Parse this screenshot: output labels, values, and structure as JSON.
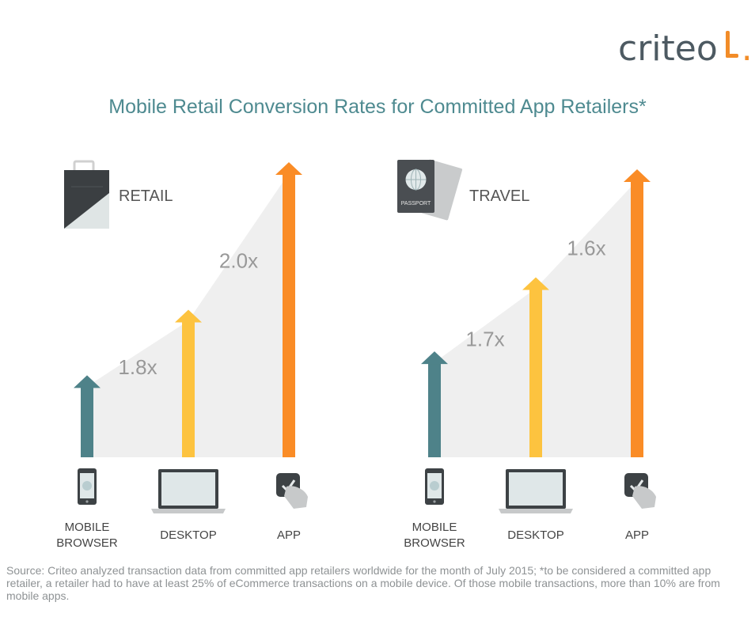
{
  "brand": {
    "name": "criteo",
    "accent_color": "#f28c28",
    "text_color": "#4d5a62"
  },
  "title": "Mobile Retail Conversion Rates for Committed App Retailers*",
  "colors": {
    "title": "#4e8a90",
    "mobile_browser": "#4e8289",
    "desktop": "#fdc33f",
    "app": "#fa8c26",
    "area": "#efefef",
    "multiplier_text": "#999999"
  },
  "chart_data": [
    {
      "type": "bar",
      "title": "RETAIL",
      "icon": "shopping-bag-icon",
      "categories": [
        "MOBILE BROWSER",
        "DESKTOP",
        "APP"
      ],
      "category_icons": [
        "smartphone-icon",
        "laptop-icon",
        "app-tap-icon"
      ],
      "values": [
        1,
        1.8,
        3.6
      ],
      "multipliers": [
        "1.8x",
        "2.0x"
      ],
      "ylim": [
        0,
        3.6
      ]
    },
    {
      "type": "bar",
      "title": "TRAVEL",
      "icon": "passport-icon",
      "categories": [
        "MOBILE BROWSER",
        "DESKTOP",
        "APP"
      ],
      "category_icons": [
        "smartphone-icon",
        "laptop-icon",
        "app-tap-icon"
      ],
      "values": [
        1,
        1.7,
        2.72
      ],
      "multipliers": [
        "1.7x",
        "1.6x"
      ],
      "ylim": [
        0,
        2.72
      ]
    }
  ],
  "icon_labels": {
    "passport": "PASSPORT"
  },
  "source": "Source: Criteo analyzed transaction data from committed app retailers worldwide for the month of July 2015; *to be considered a committed app retailer, a retailer had to have at least 25% of eCommerce transactions on a mobile device. Of those mobile transactions, more than 10% are from mobile apps."
}
